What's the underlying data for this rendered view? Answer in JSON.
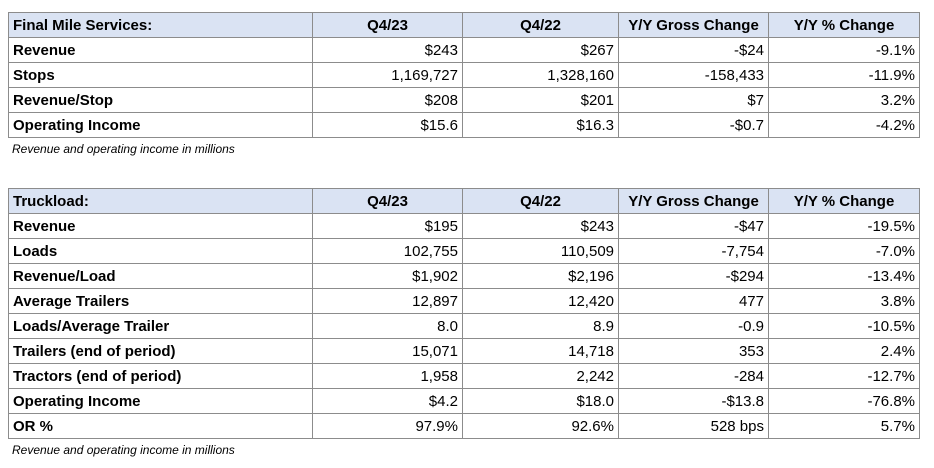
{
  "tables": [
    {
      "header": [
        "Final Mile Services:",
        "Q4/23",
        "Q4/22",
        "Y/Y Gross Change",
        "Y/Y % Change"
      ],
      "rows": [
        [
          "Revenue",
          "$243",
          "$267",
          "-$24",
          "-9.1%"
        ],
        [
          "Stops",
          "1,169,727",
          "1,328,160",
          "-158,433",
          "-11.9%"
        ],
        [
          "Revenue/Stop",
          "$208",
          "$201",
          "$7",
          "3.2%"
        ],
        [
          "Operating Income",
          "$15.6",
          "$16.3",
          "-$0.7",
          "-4.2%"
        ]
      ],
      "note": "Revenue and operating income in millions"
    },
    {
      "header": [
        "Truckload:",
        "Q4/23",
        "Q4/22",
        "Y/Y Gross Change",
        "Y/Y % Change"
      ],
      "rows": [
        [
          "Revenue",
          "$195",
          "$243",
          "-$47",
          "-19.5%"
        ],
        [
          "Loads",
          "102,755",
          "110,509",
          "-7,754",
          "-7.0%"
        ],
        [
          "Revenue/Load",
          "$1,902",
          "$2,196",
          "-$294",
          "-13.4%"
        ],
        [
          "Average Trailers",
          "12,897",
          "12,420",
          "477",
          "3.8%"
        ],
        [
          "Loads/Average Trailer",
          "8.0",
          "8.9",
          "-0.9",
          "-10.5%"
        ],
        [
          "Trailers (end of period)",
          "15,071",
          "14,718",
          "353",
          "2.4%"
        ],
        [
          "Tractors (end of period)",
          "1,958",
          "2,242",
          "-284",
          "-12.7%"
        ],
        [
          "Operating Income",
          "$4.2",
          "$18.0",
          "-$13.8",
          "-76.8%"
        ],
        [
          "OR %",
          "97.9%",
          "92.6%",
          "528 bps",
          "5.7%"
        ]
      ],
      "note": "Revenue and operating income in millions"
    }
  ]
}
